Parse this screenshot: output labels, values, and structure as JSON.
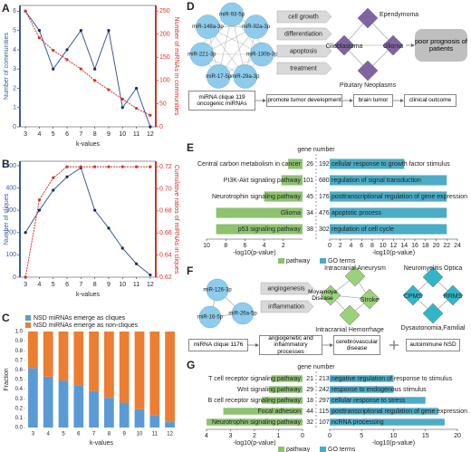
{
  "chart_data": [
    {
      "type": "dual_line",
      "panel": "A",
      "x": [
        3,
        4,
        5,
        6,
        7,
        8,
        9,
        10,
        11,
        12
      ],
      "xlim": [
        2.6,
        12.4
      ],
      "xticks": [
        3,
        4,
        5,
        6,
        7,
        8,
        9,
        10,
        11,
        12
      ],
      "xlabel": "k-values",
      "ylabel": "Number of communities",
      "ylim": [
        0,
        6.3
      ],
      "yticks": [
        0,
        1,
        2,
        3,
        4,
        5,
        6
      ],
      "y2label": "Number of miRNAs in communities",
      "y2lim": [
        0,
        262
      ],
      "y2ticks": [
        0,
        50,
        100,
        150,
        200,
        250
      ],
      "series": [
        {
          "color": "#3b5a9a",
          "values": [
            6,
            5,
            3,
            4,
            5,
            3,
            5,
            1,
            2,
            0
          ]
        },
        {
          "color": "#d73027",
          "axis": "y2",
          "values": [
            250,
            192,
            165,
            145,
            125,
            100,
            80,
            60,
            40,
            25
          ]
        }
      ]
    },
    {
      "type": "dual_line",
      "panel": "B",
      "x": [
        3,
        4,
        5,
        6,
        7,
        8,
        9,
        10,
        11,
        12
      ],
      "xlim": [
        2.6,
        12.4
      ],
      "xticks": [
        3,
        4,
        5,
        6,
        7,
        8,
        9,
        10,
        11,
        12
      ],
      "xlabel": "k-values",
      "ylabel": "Number of cliques",
      "ylim": [
        0,
        520
      ],
      "yticks": [
        0,
        100,
        200,
        300,
        400,
        500
      ],
      "y2label": "Cumulative ratios of miRNAs in cliques",
      "y2lim": [
        0.62,
        0.725
      ],
      "y2ticks": [
        0.62,
        0.64,
        0.66,
        0.68,
        {
          "value": 0.7,
          "label": "0.70"
        },
        0.72
      ],
      "series": [
        {
          "color": "#3b5a9a",
          "values": [
            200,
            300,
            390,
            450,
            490,
            300,
            220,
            130,
            60,
            10
          ]
        },
        {
          "color": "#d73027",
          "axis": "y2",
          "values": [
            0.62,
            0.69,
            0.71,
            0.72,
            0.72,
            0.72,
            0.72,
            0.72,
            0.72,
            0.72
          ]
        }
      ]
    },
    {
      "type": "stacked_bar",
      "panel": "C",
      "categories": [
        "3",
        "4",
        "5",
        "6",
        "7",
        "8",
        "9",
        "10",
        "11",
        "12"
      ],
      "xlabel": "k-values",
      "ylabel": "Fraction",
      "ylim": [
        0,
        1
      ],
      "yticks": [
        {
          "value": 0,
          "label": "0.0"
        },
        0.1,
        0.2,
        0.3,
        0.4,
        0.5,
        0.6,
        0.7,
        0.8,
        0.9,
        {
          "value": 1,
          "label": "1.0"
        }
      ],
      "series": [
        {
          "name": "NSD miRNAs emerge as cliques",
          "color": "#5b9bd5",
          "values": [
            0.62,
            0.53,
            0.49,
            0.44,
            0.38,
            0.31,
            0.26,
            0.19,
            0.13,
            0.06
          ]
        },
        {
          "name": "NSD miRNAs emerge as non-cliques",
          "color": "#ed7d31",
          "values": [
            0.38,
            0.47,
            0.51,
            0.56,
            0.62,
            0.69,
            0.74,
            0.81,
            0.87,
            0.94
          ]
        }
      ]
    },
    {
      "type": "butterfly",
      "panel": "E",
      "header": "gene number",
      "xlabel": "-log10(p-value)",
      "categories": [
        "Central carbon metabolism in cancer",
        "PI3K-Akt signaling pathway",
        "Neurotrophin signaling pathway",
        "Glioma",
        "p53 signaling pathway"
      ],
      "xlim": [
        10,
        0
      ],
      "xticks": [
        10,
        8,
        6,
        4,
        2
      ],
      "x2lim": [
        0,
        24
      ],
      "x2ticks": [
        0,
        2,
        4,
        6,
        8,
        10,
        12,
        14,
        16,
        18,
        20,
        22,
        24
      ],
      "series": [
        {
          "name": "pathway",
          "color": "#8dc26f",
          "values": [
            1.5,
            2.2,
            4,
            9,
            9
          ],
          "genes": [
            26,
            101,
            45,
            34,
            38
          ]
        },
        {
          "name": "GO terms",
          "color": "#4bacc6",
          "values": [
            14,
            22,
            22,
            22,
            22
          ],
          "genes": [
            192,
            680,
            176,
            476,
            302
          ],
          "labels": [
            "cellular response to growth factor stimulus",
            "regulation of signal transduction",
            "posttranscriptional regulation of gene expression",
            "apoptotic process",
            "regulation of cell cycle"
          ]
        }
      ]
    },
    {
      "type": "butterfly",
      "panel": "G",
      "header": "gene number",
      "xlabel": "-log10(p-value)",
      "categories": [
        "T cell receptor signaling pathway",
        "Wnt signaling pathway",
        "B cell receptor signaling pathway",
        "Focal adhesion",
        "Neurotrophin signaling pathway"
      ],
      "xlim": [
        4,
        0
      ],
      "xticks": [
        4,
        3,
        2,
        1,
        0
      ],
      "x2lim": [
        0,
        20
      ],
      "x2ticks": [
        0,
        5,
        10,
        15,
        20
      ],
      "series": [
        {
          "name": "pathway",
          "color": "#8dc26f",
          "values": [
            1.3,
            1.4,
            1.7,
            3.3,
            4
          ],
          "genes": [
            21,
            29,
            18,
            44,
            32
          ]
        },
        {
          "name": "GO terms",
          "color": "#4bacc6",
          "values": [
            10,
            10,
            15,
            17,
            18
          ],
          "genes": [
            213,
            242,
            297,
            115,
            107
          ],
          "labels": [
            "negative regulation of response to stimulus",
            "response to endogenous stimulus",
            "cellular response to stress",
            "posttranscriptional regulation of gene expression",
            "ncRNA processing"
          ]
        }
      ]
    }
  ],
  "diagrams": [
    {
      "panel": "D",
      "mirnas": [
        "miR-93-5p",
        "miR-92a-3p",
        "miR-130b-3p",
        "miR-29a-3p",
        "miR-17-5p",
        "miR-221-3p",
        "miR-148a-3p"
      ],
      "processes": [
        "cell growth",
        "differentiation",
        "apoptosis",
        "treatment"
      ],
      "diseases": [
        "Ependymoma",
        "Glioblastoma",
        "Glioma",
        "Pituitary Neoplasms"
      ],
      "outcome": "poor prognosis of patients",
      "flow": [
        "miRNA clique 119 oncogenic miRNAs",
        "promote tumor development",
        "brain tumor",
        "clinical outcome"
      ]
    },
    {
      "panel": "F",
      "mirnas": [
        "miR-126-3p",
        "miR-16-5p",
        "miR-26a-5p"
      ],
      "processes": [
        "angiogenesis",
        "inflammation"
      ],
      "diseases": [
        "Intracranial Aneurysm",
        "Moyamoya Disease",
        "Stroke",
        "Intracranial Hemorrhage"
      ],
      "autoimmune": [
        "Neuromyelitis Optica",
        "CPMS",
        "RRMS",
        "Dysautonomia,Familial"
      ],
      "flow": [
        "miRNA clique 1176",
        "angiogenetic and inflammatory processes",
        "cerebrovascular disease",
        "autoimmune NSD"
      ]
    }
  ]
}
